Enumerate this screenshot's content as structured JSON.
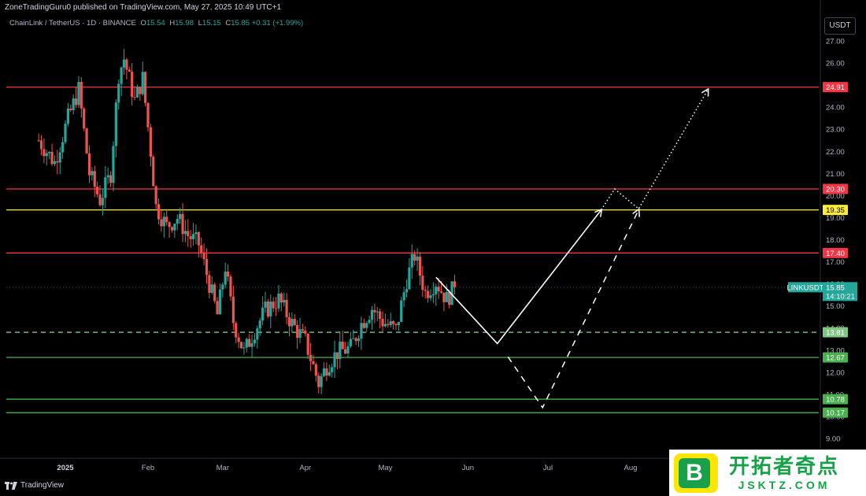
{
  "header": {
    "publisher": "ZoneTradingGuru0 published on TradingView.com, May 27, 2025 10:49 UTC+1"
  },
  "symbol_line": {
    "name": "ChainLink / TetherUS · 1D · BINANCE",
    "open_label": "O",
    "open": "15.54",
    "high_label": "H",
    "high": "15.98",
    "low_label": "L",
    "low": "15.15",
    "close_label": "C",
    "close": "15.85",
    "change": "+0.31 (+1.99%)"
  },
  "axis": {
    "currency": "USDT"
  },
  "footer": {
    "brand": "TradingView"
  },
  "watermark": {
    "title": "开拓者奇点",
    "subtitle": "JSKTZ.COM",
    "icon_letter": "B"
  },
  "colors": {
    "background": "#000000",
    "up": "#26a69a",
    "down": "#ef5350",
    "resistance": "#f23645",
    "yellow": "#ffeb3b",
    "support": "#4caf50",
    "dash": "#81c784"
  },
  "chart_data": {
    "type": "candlestick",
    "symbol": "LINKUSDT",
    "timeframe": "1D",
    "ylim": [
      9,
      27.5
    ],
    "y_ticks": [
      9,
      10,
      11,
      12,
      13,
      14,
      15,
      16,
      17,
      18,
      19,
      20,
      21,
      22,
      23,
      24,
      25,
      26,
      27
    ],
    "x_ticks": [
      {
        "label": "2025",
        "date": "2025-01-01",
        "bold": true
      },
      {
        "label": "Feb",
        "date": "2025-02-01"
      },
      {
        "label": "Mar",
        "date": "2025-03-01"
      },
      {
        "label": "Apr",
        "date": "2025-04-01"
      },
      {
        "label": "May",
        "date": "2025-05-01"
      },
      {
        "label": "Jun",
        "date": "2025-06-01"
      },
      {
        "label": "Jul",
        "date": "2025-07-01"
      },
      {
        "label": "Aug",
        "date": "2025-08-01"
      }
    ],
    "last_price": {
      "label": "LINKUSDT",
      "price": "15.85",
      "countdown": "14:10:21"
    },
    "levels": [
      {
        "price": 24.91,
        "label": "24.91",
        "kind": "resistance"
      },
      {
        "price": 20.3,
        "label": "20.30",
        "kind": "resistance"
      },
      {
        "price": 19.35,
        "label": "19.35",
        "kind": "yellow"
      },
      {
        "price": 17.4,
        "label": "17.40",
        "kind": "resistance"
      },
      {
        "price": 13.81,
        "label": "13.81",
        "kind": "support-dashed"
      },
      {
        "price": 12.67,
        "label": "12.67",
        "kind": "support"
      },
      {
        "price": 10.78,
        "label": "10.78",
        "kind": "support"
      },
      {
        "price": 10.17,
        "label": "10.17",
        "kind": "support"
      }
    ],
    "price_path": [
      {
        "date": "2024-12-22",
        "close": 22.5
      },
      {
        "date": "2024-12-28",
        "close": 21.5
      },
      {
        "date": "2025-01-02",
        "close": 23.5
      },
      {
        "date": "2025-01-06",
        "close": 24.8
      },
      {
        "date": "2025-01-10",
        "close": 21.0
      },
      {
        "date": "2025-01-14",
        "close": 19.8
      },
      {
        "date": "2025-01-18",
        "close": 21.0
      },
      {
        "date": "2025-01-21",
        "close": 25.5
      },
      {
        "date": "2025-01-23",
        "close": 26.2
      },
      {
        "date": "2025-01-27",
        "close": 24.3
      },
      {
        "date": "2025-01-30",
        "close": 25.3
      },
      {
        "date": "2025-02-02",
        "close": 22.0
      },
      {
        "date": "2025-02-04",
        "close": 19.5
      },
      {
        "date": "2025-02-08",
        "close": 18.6
      },
      {
        "date": "2025-02-12",
        "close": 19.0
      },
      {
        "date": "2025-02-16",
        "close": 18.2
      },
      {
        "date": "2025-02-20",
        "close": 17.8
      },
      {
        "date": "2025-02-24",
        "close": 16.0
      },
      {
        "date": "2025-02-27",
        "close": 14.6
      },
      {
        "date": "2025-03-02",
        "close": 16.8
      },
      {
        "date": "2025-03-05",
        "close": 14.3
      },
      {
        "date": "2025-03-09",
        "close": 12.9
      },
      {
        "date": "2025-03-13",
        "close": 13.9
      },
      {
        "date": "2025-03-17",
        "close": 14.8
      },
      {
        "date": "2025-03-22",
        "close": 15.3
      },
      {
        "date": "2025-03-27",
        "close": 14.2
      },
      {
        "date": "2025-04-01",
        "close": 13.4
      },
      {
        "date": "2025-04-06",
        "close": 11.5
      },
      {
        "date": "2025-04-09",
        "close": 12.3
      },
      {
        "date": "2025-04-13",
        "close": 12.9
      },
      {
        "date": "2025-04-18",
        "close": 13.1
      },
      {
        "date": "2025-04-22",
        "close": 14.2
      },
      {
        "date": "2025-04-26",
        "close": 14.9
      },
      {
        "date": "2025-04-30",
        "close": 14.3
      },
      {
        "date": "2025-05-05",
        "close": 13.9
      },
      {
        "date": "2025-05-09",
        "close": 16.2
      },
      {
        "date": "2025-05-12",
        "close": 17.3
      },
      {
        "date": "2025-05-16",
        "close": 15.6
      },
      {
        "date": "2025-05-20",
        "close": 16.1
      },
      {
        "date": "2025-05-24",
        "close": 15.3
      },
      {
        "date": "2025-05-27",
        "close": 15.85
      }
    ],
    "projections": [
      {
        "style": "solid",
        "points": [
          {
            "date": "2025-05-20",
            "price": 16.3
          },
          {
            "date": "2025-06-12",
            "price": 13.3
          },
          {
            "date": "2025-07-21",
            "price": 19.35
          }
        ]
      },
      {
        "style": "dashed",
        "points": [
          {
            "date": "2025-06-16",
            "price": 12.7
          },
          {
            "date": "2025-06-29",
            "price": 10.4
          },
          {
            "date": "2025-08-04",
            "price": 19.35
          }
        ]
      },
      {
        "style": "dotted",
        "points": [
          {
            "date": "2025-07-21",
            "price": 19.35
          },
          {
            "date": "2025-07-26",
            "price": 20.3
          },
          {
            "date": "2025-08-04",
            "price": 19.4
          },
          {
            "date": "2025-08-30",
            "price": 24.8
          }
        ]
      }
    ]
  }
}
